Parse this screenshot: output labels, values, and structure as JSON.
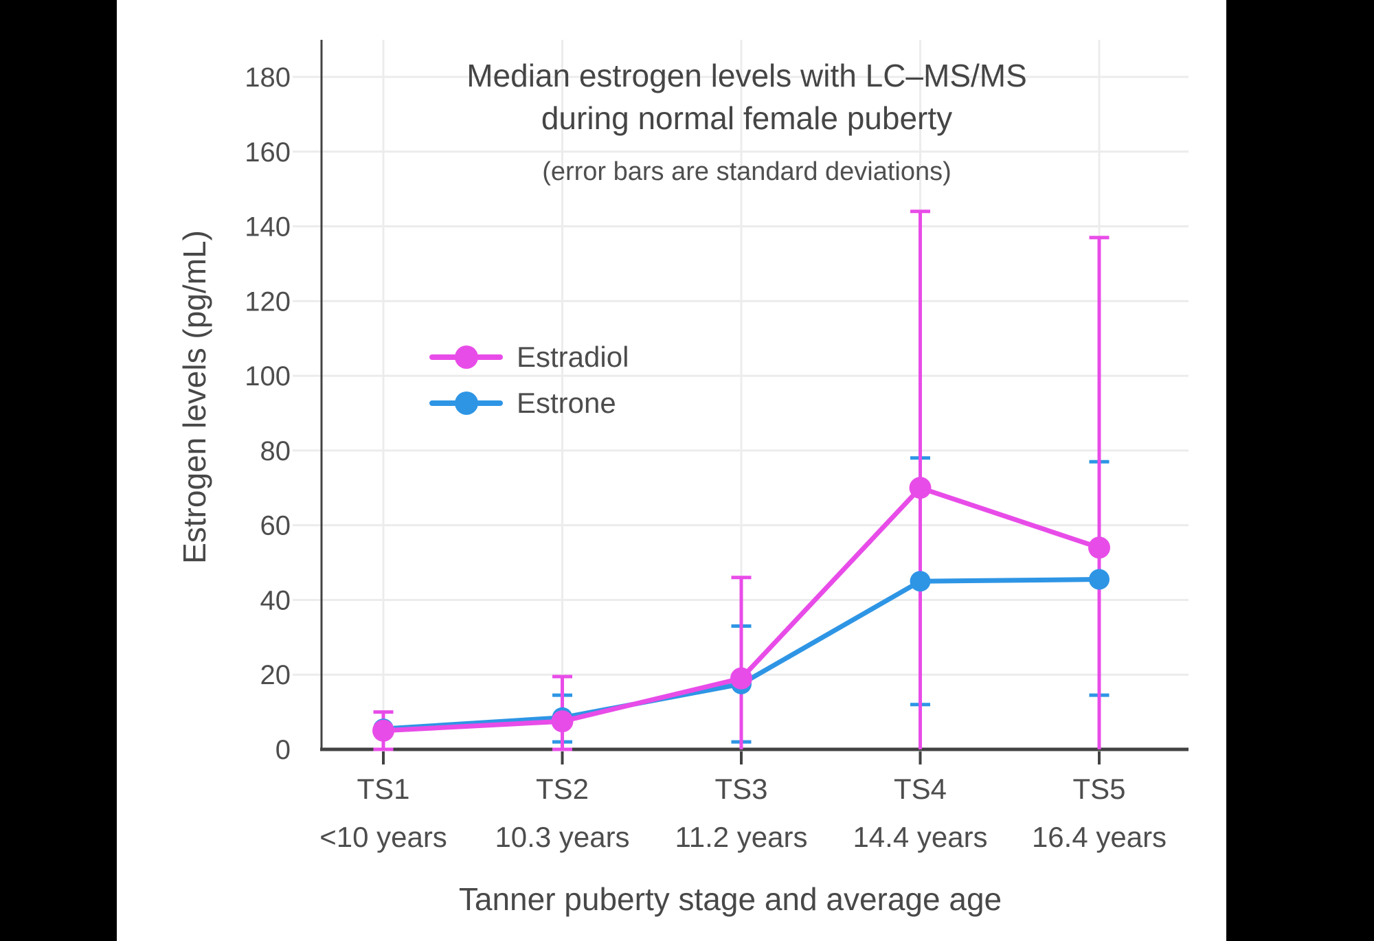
{
  "page": {
    "background_color": "#000000",
    "canvas_color": "#ffffff",
    "gridline_color": "#ececec",
    "axis_color": "#424242",
    "text_color": "#4c4c4c"
  },
  "chart_data": {
    "type": "line",
    "title": "Median estrogen levels with LC–MS/MS during normal female puberty",
    "title_lines": [
      "Median estrogen levels with LC–MS/MS",
      "during normal female puberty"
    ],
    "subtitle": "(error bars are standard deviations)",
    "xlabel": "Tanner puberty stage and average age",
    "ylabel": "Estrogen levels (pg/mL)",
    "error_bars": "standard deviations",
    "grid": true,
    "legend_position": "inside-upper-left",
    "ylim": [
      0,
      190
    ],
    "yticks": [
      0,
      20,
      40,
      60,
      80,
      100,
      120,
      140,
      160,
      180
    ],
    "x_categories": [
      {
        "stage": "TS1",
        "age": "<10 years"
      },
      {
        "stage": "TS2",
        "age": "10.3 years"
      },
      {
        "stage": "TS3",
        "age": "11.2 years"
      },
      {
        "stage": "TS4",
        "age": "14.4 years"
      },
      {
        "stage": "TS5",
        "age": "16.4 years"
      }
    ],
    "series": [
      {
        "name": "Estradiol",
        "color": "#E84CE8",
        "values": [
          5,
          7.5,
          19,
          70,
          54
        ],
        "err_high": [
          10,
          19.5,
          46,
          144,
          137
        ],
        "err_low": [
          0,
          0,
          0,
          0,
          0
        ],
        "err_low_cap": [
          true,
          true,
          false,
          false,
          false
        ]
      },
      {
        "name": "Estrone",
        "color": "#2E95E5",
        "values": [
          5.5,
          8.5,
          17.5,
          45,
          45.5
        ],
        "err_high": [
          null,
          14.5,
          33,
          78,
          77
        ],
        "err_low": [
          null,
          2,
          2,
          12,
          14.5
        ]
      }
    ]
  }
}
